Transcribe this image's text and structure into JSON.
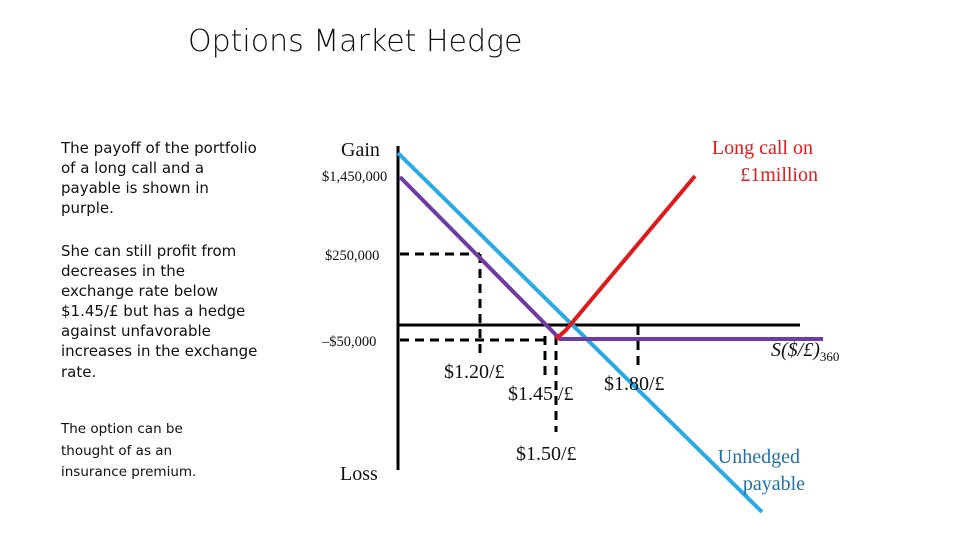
{
  "title": "Options Market Hedge",
  "bullets": [
    "The payoff of the portfolio of a long call and a payable is shown in purple.",
    "She can still profit from decreases in the exchange rate below $1.45/£ but has a hedge against unfavorable increases in the exchange rate.",
    "The option can be thought of as an insurance premium."
  ],
  "diagram": {
    "gain_label": "Gain",
    "loss_label": "Loss",
    "y_labels": {
      "top": "$1,450,000",
      "mid": "$250,000",
      "low": "–$50,000"
    },
    "x_labels": {
      "a": "$1.20/£",
      "b": "$1.45 /£",
      "c": "$1.50/£",
      "d": "$1.80/£"
    },
    "axis_label_main": "S($/£)",
    "axis_label_sub": "360",
    "long_call_label": [
      "Long call on",
      "£1million"
    ],
    "unhedged_label": [
      "Unhedged",
      "payable"
    ],
    "colors": {
      "long_call": "#e01a1a",
      "unhedged": "#29a9e6",
      "hedged": "#6f3aa3",
      "axis": "#000000"
    }
  }
}
